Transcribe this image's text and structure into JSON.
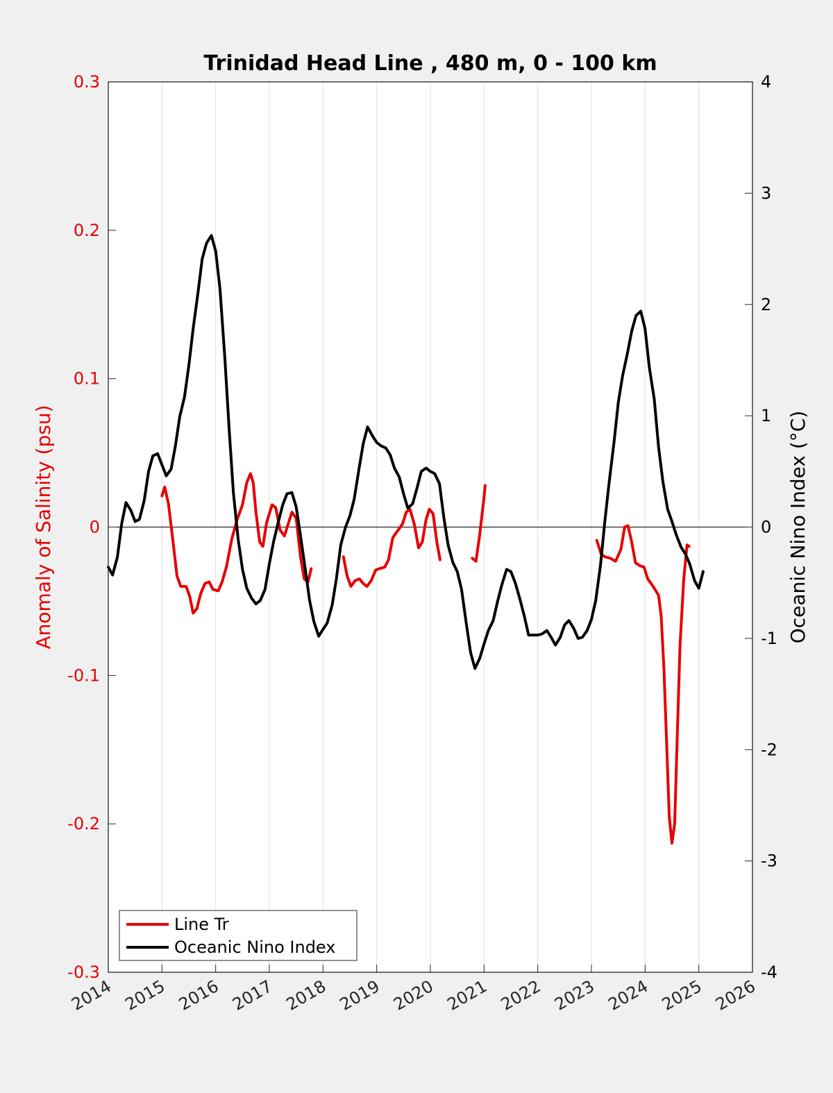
{
  "chart_data": {
    "type": "line",
    "title": "Trinidad Head Line , 480 m, 0 - 100 km",
    "xlabel": "",
    "ylabel_left": "Anomaly of Salinity (psu)",
    "ylabel_right": "Oceanic Nino Index (°C)",
    "xlim": [
      2014,
      2026
    ],
    "ylim_left": [
      -0.3,
      0.3
    ],
    "ylim_right": [
      -4,
      4
    ],
    "x_ticks": [
      "2014",
      "2015",
      "2016",
      "2017",
      "2018",
      "2019",
      "2020",
      "2021",
      "2022",
      "2023",
      "2024",
      "2025",
      "2026"
    ],
    "y_ticks_left": [
      "0.3",
      "0.2",
      "0.1",
      "0",
      "-0.1",
      "-0.2",
      "-0.3"
    ],
    "y_ticks_right": [
      "4",
      "3",
      "2",
      "1",
      "0",
      "-1",
      "-2",
      "-3",
      "-4"
    ],
    "grid": "vertical",
    "legend_position": "bottom-left",
    "colors": {
      "left_axis": "#e60000",
      "series_red": "#e60000",
      "series_black": "#000000",
      "plot_bg": "#ffffff",
      "figure_bg": "#f0f0f0"
    },
    "series": [
      {
        "name": "Line Tr",
        "axis": "left",
        "color": "#e60000",
        "segments": [
          [
            [
              2015.0,
              0.021
            ],
            [
              2015.05,
              0.027
            ],
            [
              2015.12,
              0.016
            ],
            [
              2015.2,
              -0.008
            ],
            [
              2015.28,
              -0.033
            ],
            [
              2015.35,
              -0.04
            ],
            [
              2015.45,
              -0.04
            ],
            [
              2015.52,
              -0.047
            ],
            [
              2015.58,
              -0.058
            ],
            [
              2015.65,
              -0.055
            ],
            [
              2015.72,
              -0.045
            ],
            [
              2015.8,
              -0.038
            ],
            [
              2015.88,
              -0.037
            ],
            [
              2015.95,
              -0.042
            ],
            [
              2016.05,
              -0.043
            ],
            [
              2016.12,
              -0.037
            ],
            [
              2016.2,
              -0.027
            ],
            [
              2016.3,
              -0.008
            ],
            [
              2016.4,
              0.005
            ],
            [
              2016.5,
              0.015
            ],
            [
              2016.58,
              0.03
            ],
            [
              2016.65,
              0.036
            ],
            [
              2016.7,
              0.03
            ],
            [
              2016.75,
              0.01
            ],
            [
              2016.82,
              -0.01
            ],
            [
              2016.88,
              -0.013
            ],
            [
              2016.95,
              0.003
            ],
            [
              2017.05,
              0.015
            ],
            [
              2017.12,
              0.013
            ],
            [
              2017.2,
              -0.002
            ],
            [
              2017.28,
              -0.006
            ],
            [
              2017.35,
              0.002
            ],
            [
              2017.42,
              0.01
            ],
            [
              2017.5,
              0.006
            ],
            [
              2017.58,
              -0.02
            ],
            [
              2017.65,
              -0.035
            ],
            [
              2017.72,
              -0.037
            ],
            [
              2017.78,
              -0.028
            ]
          ],
          [
            [
              2018.38,
              -0.02
            ],
            [
              2018.45,
              -0.033
            ],
            [
              2018.52,
              -0.04
            ],
            [
              2018.6,
              -0.036
            ],
            [
              2018.68,
              -0.035
            ],
            [
              2018.75,
              -0.038
            ],
            [
              2018.82,
              -0.04
            ],
            [
              2018.9,
              -0.036
            ],
            [
              2018.98,
              -0.029
            ],
            [
              2019.05,
              -0.028
            ],
            [
              2019.15,
              -0.027
            ],
            [
              2019.22,
              -0.022
            ],
            [
              2019.3,
              -0.007
            ],
            [
              2019.38,
              -0.003
            ],
            [
              2019.48,
              0.002
            ],
            [
              2019.55,
              0.01
            ],
            [
              2019.62,
              0.012
            ],
            [
              2019.7,
              0.002
            ],
            [
              2019.78,
              -0.014
            ],
            [
              2019.85,
              -0.01
            ],
            [
              2019.92,
              0.005
            ],
            [
              2019.98,
              0.012
            ],
            [
              2020.05,
              0.009
            ],
            [
              2020.12,
              -0.01
            ],
            [
              2020.18,
              -0.022
            ]
          ],
          [
            [
              2020.78,
              -0.021
            ],
            [
              2020.85,
              -0.023
            ],
            [
              2020.92,
              -0.005
            ],
            [
              2021.0,
              0.02
            ],
            [
              2021.02,
              0.028
            ]
          ],
          [
            [
              2023.1,
              -0.009
            ],
            [
              2023.18,
              -0.018
            ],
            [
              2023.25,
              -0.02
            ],
            [
              2023.35,
              -0.021
            ],
            [
              2023.45,
              -0.023
            ],
            [
              2023.55,
              -0.015
            ],
            [
              2023.62,
              0.0
            ],
            [
              2023.68,
              0.001
            ],
            [
              2023.75,
              -0.01
            ],
            [
              2023.82,
              -0.024
            ],
            [
              2023.9,
              -0.026
            ],
            [
              2023.98,
              -0.027
            ],
            [
              2024.05,
              -0.035
            ],
            [
              2024.15,
              -0.04
            ],
            [
              2024.25,
              -0.046
            ],
            [
              2024.3,
              -0.06
            ],
            [
              2024.35,
              -0.095
            ],
            [
              2024.4,
              -0.145
            ],
            [
              2024.45,
              -0.195
            ],
            [
              2024.5,
              -0.213
            ],
            [
              2024.55,
              -0.2
            ],
            [
              2024.6,
              -0.14
            ],
            [
              2024.65,
              -0.08
            ],
            [
              2024.72,
              -0.035
            ],
            [
              2024.78,
              -0.012
            ],
            [
              2024.82,
              -0.013
            ]
          ]
        ]
      },
      {
        "name": "Oceanic Nino Index",
        "axis": "right",
        "color": "#000000",
        "segments": [
          [
            [
              2014.0,
              -0.36
            ],
            [
              2014.08,
              -0.43
            ],
            [
              2014.17,
              -0.27
            ],
            [
              2014.25,
              0.03
            ],
            [
              2014.33,
              0.22
            ],
            [
              2014.42,
              0.15
            ],
            [
              2014.5,
              0.05
            ],
            [
              2014.58,
              0.07
            ],
            [
              2014.67,
              0.24
            ],
            [
              2014.75,
              0.5
            ],
            [
              2014.83,
              0.64
            ],
            [
              2014.92,
              0.66
            ],
            [
              2015.0,
              0.56
            ],
            [
              2015.08,
              0.46
            ],
            [
              2015.17,
              0.52
            ],
            [
              2015.25,
              0.73
            ],
            [
              2015.33,
              0.99
            ],
            [
              2015.42,
              1.17
            ],
            [
              2015.5,
              1.45
            ],
            [
              2015.58,
              1.78
            ],
            [
              2015.67,
              2.1
            ],
            [
              2015.75,
              2.41
            ],
            [
              2015.83,
              2.55
            ],
            [
              2015.92,
              2.62
            ],
            [
              2016.0,
              2.48
            ],
            [
              2016.08,
              2.14
            ],
            [
              2016.17,
              1.53
            ],
            [
              2016.25,
              0.89
            ],
            [
              2016.33,
              0.31
            ],
            [
              2016.42,
              -0.11
            ],
            [
              2016.5,
              -0.38
            ],
            [
              2016.58,
              -0.55
            ],
            [
              2016.67,
              -0.64
            ],
            [
              2016.75,
              -0.69
            ],
            [
              2016.83,
              -0.66
            ],
            [
              2016.92,
              -0.56
            ],
            [
              2017.0,
              -0.33
            ],
            [
              2017.08,
              -0.13
            ],
            [
              2017.17,
              0.05
            ],
            [
              2017.25,
              0.2
            ],
            [
              2017.33,
              0.3
            ],
            [
              2017.42,
              0.31
            ],
            [
              2017.5,
              0.18
            ],
            [
              2017.58,
              -0.08
            ],
            [
              2017.67,
              -0.38
            ],
            [
              2017.75,
              -0.66
            ],
            [
              2017.83,
              -0.85
            ],
            [
              2017.92,
              -0.98
            ],
            [
              2018.0,
              -0.92
            ],
            [
              2018.08,
              -0.86
            ],
            [
              2018.17,
              -0.7
            ],
            [
              2018.25,
              -0.46
            ],
            [
              2018.33,
              -0.16
            ],
            [
              2018.42,
              0.0
            ],
            [
              2018.5,
              0.1
            ],
            [
              2018.58,
              0.25
            ],
            [
              2018.67,
              0.52
            ],
            [
              2018.75,
              0.75
            ],
            [
              2018.83,
              0.9
            ],
            [
              2018.92,
              0.82
            ],
            [
              2019.0,
              0.76
            ],
            [
              2019.08,
              0.73
            ],
            [
              2019.17,
              0.71
            ],
            [
              2019.25,
              0.65
            ],
            [
              2019.33,
              0.53
            ],
            [
              2019.42,
              0.45
            ],
            [
              2019.5,
              0.3
            ],
            [
              2019.58,
              0.17
            ],
            [
              2019.67,
              0.21
            ],
            [
              2019.75,
              0.35
            ],
            [
              2019.83,
              0.5
            ],
            [
              2019.92,
              0.53
            ],
            [
              2020.0,
              0.5
            ],
            [
              2020.08,
              0.48
            ],
            [
              2020.17,
              0.39
            ],
            [
              2020.25,
              0.09
            ],
            [
              2020.33,
              -0.16
            ],
            [
              2020.42,
              -0.32
            ],
            [
              2020.5,
              -0.4
            ],
            [
              2020.58,
              -0.56
            ],
            [
              2020.67,
              -0.87
            ],
            [
              2020.75,
              -1.13
            ],
            [
              2020.83,
              -1.27
            ],
            [
              2020.92,
              -1.18
            ],
            [
              2021.0,
              -1.05
            ],
            [
              2021.08,
              -0.93
            ],
            [
              2021.17,
              -0.84
            ],
            [
              2021.25,
              -0.67
            ],
            [
              2021.33,
              -0.52
            ],
            [
              2021.42,
              -0.38
            ],
            [
              2021.5,
              -0.4
            ],
            [
              2021.58,
              -0.5
            ],
            [
              2021.67,
              -0.65
            ],
            [
              2021.75,
              -0.8
            ],
            [
              2021.83,
              -0.97
            ],
            [
              2021.92,
              -0.97
            ],
            [
              2022.0,
              -0.97
            ],
            [
              2022.08,
              -0.96
            ],
            [
              2022.17,
              -0.93
            ],
            [
              2022.25,
              -0.99
            ],
            [
              2022.33,
              -1.06
            ],
            [
              2022.42,
              -0.99
            ],
            [
              2022.5,
              -0.88
            ],
            [
              2022.58,
              -0.84
            ],
            [
              2022.67,
              -0.91
            ],
            [
              2022.75,
              -1.0
            ],
            [
              2022.83,
              -0.99
            ],
            [
              2022.92,
              -0.93
            ],
            [
              2023.0,
              -0.83
            ],
            [
              2023.08,
              -0.66
            ],
            [
              2023.17,
              -0.34
            ],
            [
              2023.25,
              0.05
            ],
            [
              2023.33,
              0.4
            ],
            [
              2023.42,
              0.76
            ],
            [
              2023.5,
              1.12
            ],
            [
              2023.58,
              1.36
            ],
            [
              2023.67,
              1.56
            ],
            [
              2023.75,
              1.76
            ],
            [
              2023.83,
              1.9
            ],
            [
              2023.92,
              1.94
            ],
            [
              2024.0,
              1.78
            ],
            [
              2024.08,
              1.43
            ],
            [
              2024.17,
              1.15
            ],
            [
              2024.25,
              0.72
            ],
            [
              2024.33,
              0.41
            ],
            [
              2024.42,
              0.16
            ],
            [
              2024.5,
              0.05
            ],
            [
              2024.58,
              -0.07
            ],
            [
              2024.67,
              -0.18
            ],
            [
              2024.75,
              -0.24
            ],
            [
              2024.83,
              -0.33
            ],
            [
              2024.92,
              -0.48
            ],
            [
              2025.0,
              -0.55
            ],
            [
              2025.08,
              -0.4
            ]
          ]
        ]
      }
    ]
  }
}
